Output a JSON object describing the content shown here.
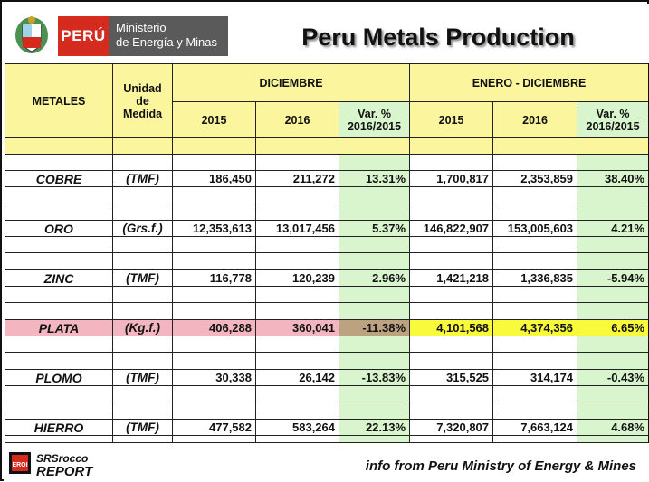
{
  "header": {
    "country": "PERÚ",
    "ministry_line1": "Ministerio",
    "ministry_line2": "de Energía y Minas",
    "title": "Peru Metals Production"
  },
  "table": {
    "col_metales": "METALES",
    "col_unidad": "Unidad de Medida",
    "group_diciembre": "DICIEMBRE",
    "group_enero": "ENERO - DICIEMBRE",
    "year_2015": "2015",
    "year_2016": "2016",
    "var_label": "Var. % 2016/2015",
    "rows": [
      {
        "metal": "COBRE",
        "unit": "(TMF)",
        "dic_2015": "186,450",
        "dic_2016": "211,272",
        "dic_var": "13.31%",
        "ene_2015": "1,700,817",
        "ene_2016": "2,353,859",
        "ene_var": "38.40%"
      },
      {
        "metal": "ORO",
        "unit": "(Grs.f.)",
        "dic_2015": "12,353,613",
        "dic_2016": "13,017,456",
        "dic_var": "5.37%",
        "ene_2015": "146,822,907",
        "ene_2016": "153,005,603",
        "ene_var": "4.21%"
      },
      {
        "metal": "ZINC",
        "unit": "(TMF)",
        "dic_2015": "116,778",
        "dic_2016": "120,239",
        "dic_var": "2.96%",
        "ene_2015": "1,421,218",
        "ene_2016": "1,336,835",
        "ene_var": "-5.94%"
      },
      {
        "metal": "PLATA",
        "unit": "(Kg.f.)",
        "dic_2015": "406,288",
        "dic_2016": "360,041",
        "dic_var": "-11.38%",
        "ene_2015": "4,101,568",
        "ene_2016": "4,374,356",
        "ene_var": "6.65%"
      },
      {
        "metal": "PLOMO",
        "unit": "(TMF)",
        "dic_2015": "30,338",
        "dic_2016": "26,142",
        "dic_var": "-13.83%",
        "ene_2015": "315,525",
        "ene_2016": "314,174",
        "ene_var": "-0.43%"
      },
      {
        "metal": "HIERRO",
        "unit": "(TMF)",
        "dic_2015": "477,582",
        "dic_2016": "583,264",
        "dic_var": "22.13%",
        "ene_2015": "7,320,807",
        "ene_2016": "7,663,124",
        "ene_var": "4.68%"
      }
    ]
  },
  "footer": {
    "logo_top": "SRSrocco",
    "logo_bottom": "REPORT",
    "credit": "info from Peru Ministry of Energy & Mines"
  },
  "colors": {
    "header_yellow": "#fbf69e",
    "var_green": "#d8f5cd",
    "plata_pink": "#f3b5bf",
    "plata_highlight": "#fafa3c",
    "peru_red": "#d52b1e"
  }
}
